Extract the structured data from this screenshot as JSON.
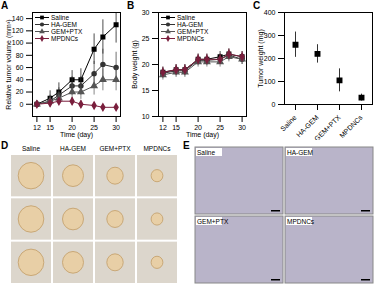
{
  "chart_data": [
    {
      "panel": "A",
      "type": "line",
      "xlabel": "Time (day)",
      "ylabel": "Relative tumor volume (mm³)",
      "x": [
        12,
        15,
        17,
        20,
        22,
        25,
        27,
        30
      ],
      "xlim": [
        11,
        31
      ],
      "xticks": [
        12,
        15,
        20,
        25,
        30
      ],
      "ylim": [
        -20,
        150
      ],
      "yticks": [
        0,
        20,
        40,
        60,
        80,
        100,
        120,
        140
      ],
      "legend": "top-left",
      "series": [
        {
          "name": "Saline",
          "color": "#000000",
          "marker": "square",
          "values": [
            0,
            10,
            20,
            40,
            40,
            90,
            110,
            130
          ],
          "errors": [
            5,
            12,
            15,
            15,
            18,
            25,
            28,
            30
          ]
        },
        {
          "name": "HA-GEM",
          "color": "#333333",
          "marker": "circle",
          "values": [
            0,
            5,
            15,
            30,
            30,
            50,
            65,
            60
          ],
          "errors": [
            5,
            10,
            12,
            15,
            15,
            20,
            25,
            25
          ]
        },
        {
          "name": "GEM+PTX",
          "color": "#555555",
          "marker": "triangle",
          "values": [
            0,
            5,
            10,
            20,
            20,
            30,
            40,
            40
          ],
          "errors": [
            5,
            8,
            10,
            12,
            12,
            15,
            18,
            18
          ]
        },
        {
          "name": "MPDNCs",
          "color": "#7a1f3d",
          "marker": "diamond",
          "values": [
            0,
            2,
            5,
            5,
            0,
            -2,
            -5,
            -5
          ],
          "errors": [
            3,
            5,
            5,
            6,
            6,
            5,
            5,
            5
          ]
        }
      ]
    },
    {
      "panel": "B",
      "type": "line",
      "xlabel": "Time (day)",
      "ylabel": "Body weight (g)",
      "x": [
        12,
        15,
        17,
        20,
        22,
        25,
        27,
        30
      ],
      "xlim": [
        11,
        31
      ],
      "xticks": [
        12,
        15,
        20,
        25,
        30
      ],
      "ylim": [
        10,
        30
      ],
      "yticks": [
        10,
        15,
        20,
        25,
        30
      ],
      "legend": "top-left",
      "series": [
        {
          "name": "Saline",
          "color": "#000000",
          "marker": "square",
          "values": [
            18.5,
            19,
            19,
            21,
            21,
            21.5,
            22,
            21.5
          ],
          "errors": [
            1,
            1,
            1,
            1,
            1,
            1,
            1,
            1
          ]
        },
        {
          "name": "HA-GEM",
          "color": "#333333",
          "marker": "circle",
          "values": [
            18.3,
            18.8,
            18.8,
            20.8,
            20.8,
            21,
            21.8,
            21
          ],
          "errors": [
            1,
            1,
            1,
            1,
            1,
            1,
            1,
            1
          ]
        },
        {
          "name": "GEM+PTX",
          "color": "#555555",
          "marker": "triangle",
          "values": [
            18,
            18.5,
            18.5,
            20.5,
            20.5,
            20.5,
            21.5,
            21
          ],
          "errors": [
            1,
            1,
            1,
            1,
            1,
            1,
            1,
            1
          ]
        },
        {
          "name": "MPDNCs",
          "color": "#7a1f3d",
          "marker": "diamond",
          "values": [
            18.5,
            19,
            19,
            21,
            21,
            21,
            22,
            21.5
          ],
          "errors": [
            1,
            1,
            1,
            1,
            1,
            1,
            1,
            1
          ]
        }
      ]
    },
    {
      "panel": "C",
      "type": "scatter",
      "ylabel": "Tumor weight (mg)",
      "categories": [
        "Saline",
        "HA-GEM",
        "GEM+PTX",
        "MPDNCs"
      ],
      "values": [
        260,
        220,
        105,
        30
      ],
      "errors": [
        55,
        40,
        50,
        15
      ],
      "color": "#000000",
      "marker": "square",
      "ylim": [
        0,
        400
      ],
      "yticks": [
        0,
        100,
        200,
        300,
        400
      ]
    },
    {
      "panel": "D",
      "type": "image",
      "labels": [
        "Saline",
        "HA-GEM",
        "GEM+PTX",
        "MPDNCs"
      ]
    },
    {
      "panel": "E",
      "type": "image",
      "labels": [
        "Saline",
        "HA-GEM",
        "GEM+PTX",
        "MPDNCs"
      ]
    }
  ]
}
